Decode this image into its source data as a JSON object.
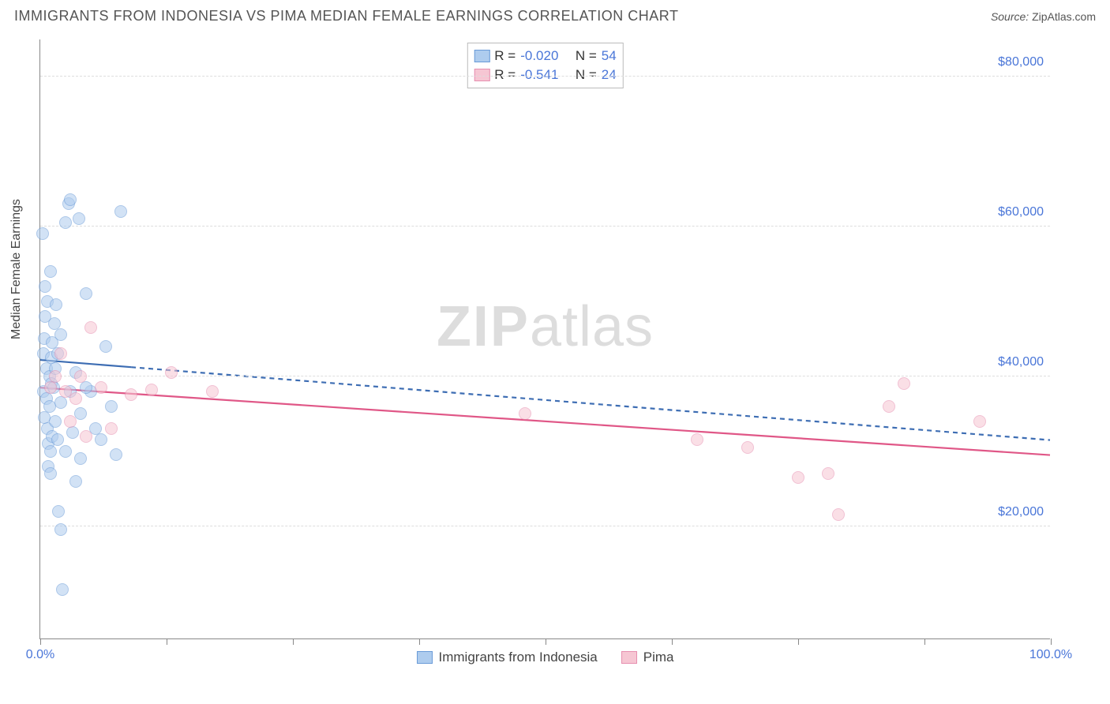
{
  "header": {
    "title": "IMMIGRANTS FROM INDONESIA VS PIMA MEDIAN FEMALE EARNINGS CORRELATION CHART",
    "source_label": "Source:",
    "source_value": "ZipAtlas.com"
  },
  "watermark": {
    "zip": "ZIP",
    "atlas": "atlas"
  },
  "chart": {
    "type": "scatter",
    "ylabel": "Median Female Earnings",
    "background_color": "#ffffff",
    "grid_color": "#dddddd",
    "axis_color": "#888888",
    "text_color": "#444444",
    "value_color": "#4a76d8",
    "xlim": [
      0,
      100
    ],
    "ylim": [
      5000,
      85000
    ],
    "y_ticks": [
      20000,
      40000,
      60000,
      80000
    ],
    "y_tick_labels": [
      "$20,000",
      "$40,000",
      "$60,000",
      "$80,000"
    ],
    "x_tick_positions": [
      0,
      12.5,
      25,
      37.5,
      50,
      62.5,
      75,
      87.5,
      100
    ],
    "x_end_labels": {
      "min": "0.0%",
      "max": "100.0%"
    },
    "marker_radius": 8,
    "marker_border_width": 1.2,
    "series": [
      {
        "name": "Immigrants from Indonesia",
        "fill": "#aeccee",
        "stroke": "#6a9bd8",
        "fill_opacity": 0.55,
        "R": "-0.020",
        "N": "54",
        "trend": {
          "x1": 0,
          "y1": 42200,
          "x2": 100,
          "y2": 31500,
          "stroke": "#3d6db3",
          "width": 2.2,
          "dash": "6 5",
          "solid_until_x": 9
        },
        "points": [
          [
            0.2,
            59000
          ],
          [
            0.3,
            43000
          ],
          [
            0.3,
            38000
          ],
          [
            0.4,
            45000
          ],
          [
            0.5,
            52000
          ],
          [
            0.5,
            48000
          ],
          [
            0.6,
            41000
          ],
          [
            0.6,
            37000
          ],
          [
            0.7,
            50000
          ],
          [
            0.7,
            33000
          ],
          [
            0.8,
            31000
          ],
          [
            0.8,
            28000
          ],
          [
            0.9,
            40000
          ],
          [
            0.9,
            36000
          ],
          [
            1.0,
            54000
          ],
          [
            1.0,
            30000
          ],
          [
            1.1,
            39000
          ],
          [
            1.1,
            42500
          ],
          [
            1.2,
            44500
          ],
          [
            1.2,
            32000
          ],
          [
            1.3,
            38500
          ],
          [
            1.4,
            47000
          ],
          [
            1.5,
            34000
          ],
          [
            1.5,
            41000
          ],
          [
            1.6,
            49500
          ],
          [
            1.7,
            43000
          ],
          [
            1.8,
            22000
          ],
          [
            2.0,
            19500
          ],
          [
            2.0,
            36500
          ],
          [
            2.0,
            45500
          ],
          [
            2.5,
            60500
          ],
          [
            2.5,
            30000
          ],
          [
            2.8,
            63000
          ],
          [
            3.0,
            38000
          ],
          [
            3.2,
            32500
          ],
          [
            3.5,
            26000
          ],
          [
            3.5,
            40500
          ],
          [
            4.0,
            35000
          ],
          [
            4.0,
            29000
          ],
          [
            4.5,
            51000
          ],
          [
            5.0,
            38000
          ],
          [
            5.5,
            33000
          ],
          [
            6.0,
            31500
          ],
          [
            6.5,
            44000
          ],
          [
            7.0,
            36000
          ],
          [
            7.5,
            29500
          ],
          [
            8.0,
            62000
          ],
          [
            2.2,
            11500
          ],
          [
            3.0,
            63500
          ],
          [
            3.8,
            61000
          ],
          [
            4.5,
            38500
          ],
          [
            1.0,
            27000
          ],
          [
            1.7,
            31500
          ],
          [
            0.4,
            34500
          ]
        ]
      },
      {
        "name": "Pima",
        "fill": "#f6c6d3",
        "stroke": "#e78fb0",
        "fill_opacity": 0.55,
        "R": "-0.541",
        "N": "24",
        "trend": {
          "x1": 0,
          "y1": 38500,
          "x2": 100,
          "y2": 29500,
          "stroke": "#e05787",
          "width": 2.2,
          "dash": "",
          "solid_until_x": 100
        },
        "points": [
          [
            1.0,
            38500
          ],
          [
            1.5,
            40000
          ],
          [
            2.0,
            43000
          ],
          [
            2.5,
            38000
          ],
          [
            3.0,
            34000
          ],
          [
            3.5,
            37000
          ],
          [
            4.5,
            32000
          ],
          [
            5.0,
            46500
          ],
          [
            6.0,
            38500
          ],
          [
            7.0,
            33000
          ],
          [
            9.0,
            37500
          ],
          [
            13.0,
            40500
          ],
          [
            17.0,
            38000
          ],
          [
            48.0,
            35000
          ],
          [
            65.0,
            31500
          ],
          [
            70.0,
            30500
          ],
          [
            75.0,
            26500
          ],
          [
            78.0,
            27000
          ],
          [
            79.0,
            21500
          ],
          [
            84.0,
            36000
          ],
          [
            85.5,
            39000
          ],
          [
            93.0,
            34000
          ],
          [
            4.0,
            40000
          ],
          [
            11.0,
            38200
          ]
        ]
      }
    ],
    "legend_top": {
      "r_label": "R =",
      "n_label": "N ="
    },
    "legend_bottom": {
      "items": [
        "Immigrants from Indonesia",
        "Pima"
      ]
    }
  }
}
